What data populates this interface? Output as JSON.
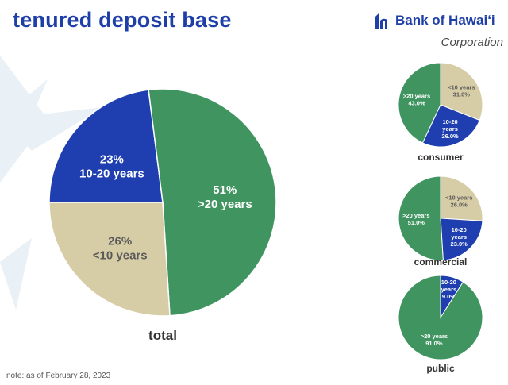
{
  "header": {
    "title": "tenured deposit base",
    "logo_name": "Bank of Hawaiʻi",
    "logo_sub": "Corporation"
  },
  "note": "note: as of February 28, 2023",
  "colors": {
    "green": "#3f9460",
    "tan": "#d6cca6",
    "blue": "#1f3fb0",
    "title_blue": "#1f3fa8"
  },
  "chart_data": [
    {
      "type": "pie",
      "title": "total",
      "slices": [
        {
          "label": "10-20 years",
          "value": 23,
          "display": "23%",
          "color": "#1f3fb0",
          "text_color": "#ffffff"
        },
        {
          "label": ">20 years",
          "value": 51,
          "display": "51%",
          "color": "#3f9460",
          "text_color": "#ffffff"
        },
        {
          "label": "<10 years",
          "value": 26,
          "display": "26%",
          "color": "#d6cca6",
          "text_color": "#5a5a5a"
        }
      ]
    },
    {
      "type": "pie",
      "title": "consumer",
      "slices": [
        {
          "label": "<10 years",
          "value": 31.0,
          "display": "31.0%",
          "color": "#d6cca6",
          "text_color": "#5a5a5a"
        },
        {
          "label": "10-20 years",
          "value": 26.0,
          "display": "26.0%",
          "color": "#1f3fb0",
          "text_color": "#ffffff"
        },
        {
          "label": ">20 years",
          "value": 43.0,
          "display": "43.0%",
          "color": "#3f9460",
          "text_color": "#ffffff"
        }
      ]
    },
    {
      "type": "pie",
      "title": "commercial",
      "slices": [
        {
          "label": "<10 years",
          "value": 26.0,
          "display": "26.0%",
          "color": "#d6cca6",
          "text_color": "#5a5a5a"
        },
        {
          "label": "10-20 years",
          "value": 23.0,
          "display": "23.0%",
          "color": "#1f3fb0",
          "text_color": "#ffffff"
        },
        {
          "label": ">20 years",
          "value": 51.0,
          "display": "51.0%",
          "color": "#3f9460",
          "text_color": "#ffffff"
        }
      ]
    },
    {
      "type": "pie",
      "title": "public",
      "slices": [
        {
          "label": "10-20 years",
          "value": 9.0,
          "display": "9.0%",
          "color": "#1f3fb0",
          "text_color": "#ffffff"
        },
        {
          "label": ">20 years",
          "value": 91.0,
          "display": "91.0%",
          "color": "#3f9460",
          "text_color": "#ffffff"
        }
      ]
    }
  ]
}
